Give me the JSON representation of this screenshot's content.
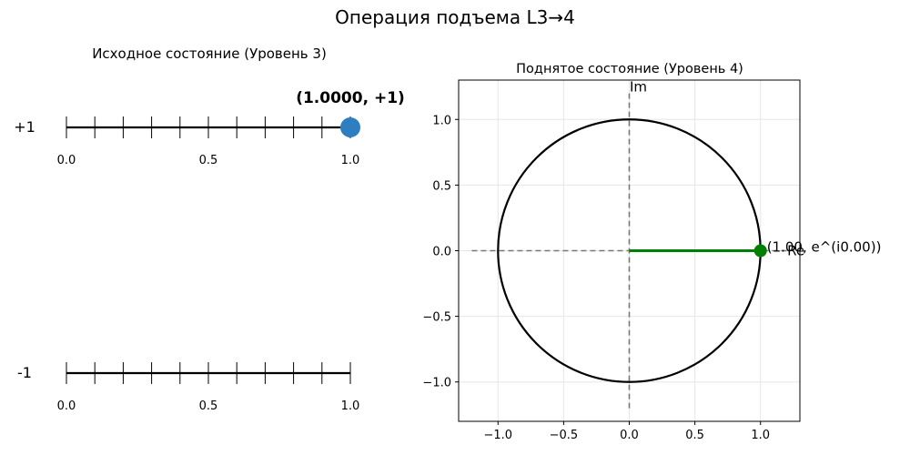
{
  "suptitle": "Операция подъема L3→4",
  "chart_data": [
    {
      "type": "scatter",
      "title": "Исходное состояние (Уровень 3)",
      "xlim": [
        0,
        1
      ],
      "tick_positions": [
        0,
        0.1,
        0.2,
        0.3,
        0.4,
        0.5,
        0.6,
        0.7,
        0.8,
        0.9,
        1.0
      ],
      "tick_labels": [
        {
          "value": 0.0,
          "label": "0.0"
        },
        {
          "value": 0.5,
          "label": "0.5"
        },
        {
          "value": 1.0,
          "label": "1.0"
        }
      ],
      "rows": [
        {
          "label": "+1",
          "point": {
            "x": 1.0,
            "label": "(1.0000, +1)",
            "color": "#2e7fc1"
          }
        },
        {
          "label": "-1",
          "point": null
        }
      ]
    },
    {
      "type": "line",
      "title": "Поднятое состояние (Уровень 4)",
      "xlim": [
        -1.3,
        1.3
      ],
      "ylim": [
        -1.3,
        1.3
      ],
      "xticks": [
        {
          "value": -1.0,
          "label": "−1.0"
        },
        {
          "value": -0.5,
          "label": "−0.5"
        },
        {
          "value": 0.0,
          "label": "0.0"
        },
        {
          "value": 0.5,
          "label": "0.5"
        },
        {
          "value": 1.0,
          "label": "1.0"
        }
      ],
      "yticks": [
        {
          "value": -1.0,
          "label": "−1.0"
        },
        {
          "value": -0.5,
          "label": "−0.5"
        },
        {
          "value": 0.0,
          "label": "0.0"
        },
        {
          "value": 0.5,
          "label": "0.5"
        },
        {
          "value": 1.0,
          "label": "1.0"
        }
      ],
      "grid": true,
      "unit_circle_radius": 1.0,
      "axis_labels": {
        "re": "Re",
        "im": "Im"
      },
      "vector": {
        "x": 1.0,
        "y": 0.0,
        "color": "#008000",
        "label": "(1.00, e^(i0.00))"
      }
    }
  ]
}
